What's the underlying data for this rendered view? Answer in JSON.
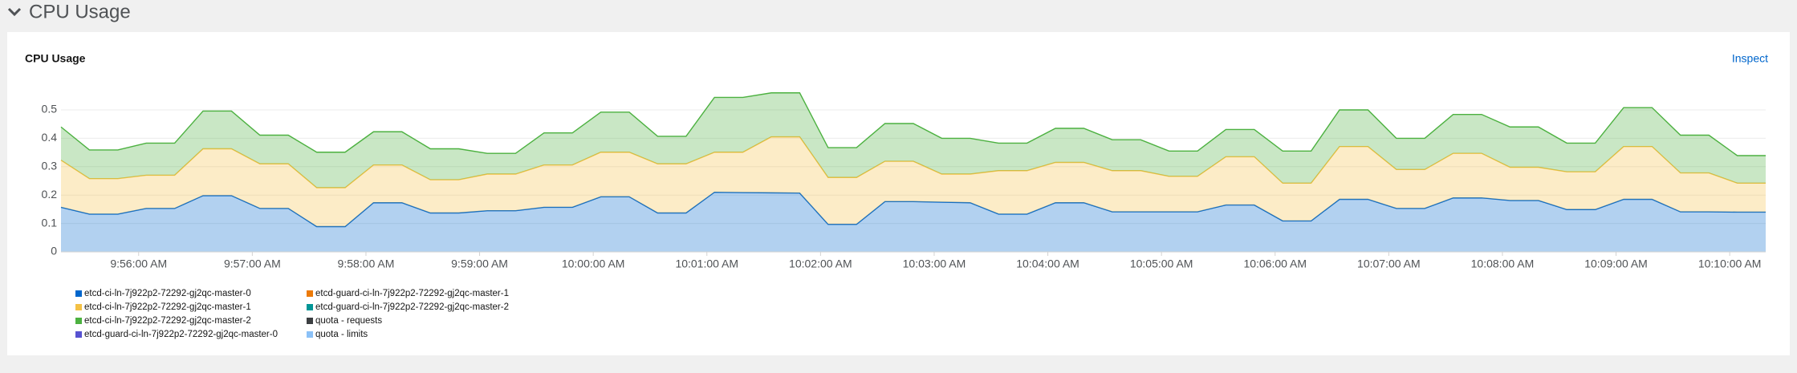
{
  "section": {
    "title": "CPU Usage"
  },
  "card": {
    "action": "Inspect"
  },
  "chart_data": {
    "type": "stacked-area",
    "title": "CPU Usage",
    "x": [
      "9:55:19 AM",
      "9:55:34 AM",
      "9:55:49 AM",
      "9:56:04 AM",
      "9:56:19 AM",
      "9:56:34 AM",
      "9:56:49 AM",
      "9:57:04 AM",
      "9:57:19 AM",
      "9:57:34 AM",
      "9:57:49 AM",
      "9:58:04 AM",
      "9:58:19 AM",
      "9:58:34 AM",
      "9:58:49 AM",
      "9:59:04 AM",
      "9:59:19 AM",
      "9:59:34 AM",
      "9:59:49 AM",
      "10:00:04 AM",
      "10:00:19 AM",
      "10:00:34 AM",
      "10:00:49 AM",
      "10:01:04 AM",
      "10:01:19 AM",
      "10:01:34 AM",
      "10:01:49 AM",
      "10:02:04 AM",
      "10:02:19 AM",
      "10:02:34 AM",
      "10:02:49 AM",
      "10:03:04 AM",
      "10:03:19 AM",
      "10:03:34 AM",
      "10:03:49 AM",
      "10:04:04 AM",
      "10:04:19 AM",
      "10:04:34 AM",
      "10:04:49 AM",
      "10:05:04 AM",
      "10:05:19 AM",
      "10:05:34 AM",
      "10:05:49 AM",
      "10:06:04 AM",
      "10:06:19 AM",
      "10:06:34 AM",
      "10:06:49 AM",
      "10:07:04 AM",
      "10:07:19 AM",
      "10:07:34 AM",
      "10:07:49 AM",
      "10:08:04 AM",
      "10:08:19 AM",
      "10:08:34 AM",
      "10:08:49 AM",
      "10:09:04 AM",
      "10:09:19 AM",
      "10:09:34 AM",
      "10:09:49 AM",
      "10:10:04 AM",
      "10:10:19 AM"
    ],
    "xlim": [
      "9:55:19 AM",
      "10:10:19 AM"
    ],
    "xticks": [
      "9:56:00 AM",
      "9:57:00 AM",
      "9:58:00 AM",
      "9:59:00 AM",
      "10:00:00 AM",
      "10:01:00 AM",
      "10:02:00 AM",
      "10:03:00 AM",
      "10:04:00 AM",
      "10:05:00 AM",
      "10:06:00 AM",
      "10:07:00 AM",
      "10:08:00 AM",
      "10:09:00 AM",
      "10:10:00 AM"
    ],
    "ylim": [
      0,
      0.5
    ],
    "yticks": [
      0,
      0.1,
      0.2,
      0.3,
      0.4,
      0.5
    ],
    "grid": true,
    "series": [
      {
        "name": "etcd-ci-ln-7j922p2-72292-gj2qc-master-0",
        "color": "#0066cc",
        "values": [
          0.157,
          0.133,
          0.133,
          0.153,
          0.153,
          0.198,
          0.198,
          0.153,
          0.153,
          0.089,
          0.089,
          0.173,
          0.173,
          0.137,
          0.137,
          0.145,
          0.145,
          0.157,
          0.157,
          0.194,
          0.194,
          0.137,
          0.137,
          0.21,
          0.209,
          0.208,
          0.207,
          0.097,
          0.097,
          0.177,
          0.177,
          0.175,
          0.173,
          0.133,
          0.133,
          0.173,
          0.173,
          0.141,
          0.141,
          0.141,
          0.141,
          0.165,
          0.165,
          0.109,
          0.109,
          0.185,
          0.185,
          0.153,
          0.153,
          0.19,
          0.19,
          0.181,
          0.181,
          0.149,
          0.149,
          0.185,
          0.185,
          0.141,
          0.141,
          0.14,
          0.14
        ]
      },
      {
        "name": "etcd-ci-ln-7j922p2-72292-gj2qc-master-1",
        "color": "#f4c145",
        "values": [
          0.166,
          0.125,
          0.125,
          0.117,
          0.117,
          0.165,
          0.165,
          0.157,
          0.157,
          0.137,
          0.137,
          0.133,
          0.133,
          0.117,
          0.117,
          0.129,
          0.129,
          0.149,
          0.149,
          0.157,
          0.157,
          0.173,
          0.173,
          0.141,
          0.142,
          0.197,
          0.198,
          0.165,
          0.165,
          0.142,
          0.142,
          0.099,
          0.101,
          0.153,
          0.153,
          0.142,
          0.142,
          0.145,
          0.145,
          0.125,
          0.125,
          0.17,
          0.17,
          0.133,
          0.133,
          0.186,
          0.186,
          0.137,
          0.137,
          0.157,
          0.157,
          0.117,
          0.117,
          0.133,
          0.133,
          0.186,
          0.186,
          0.137,
          0.137,
          0.102,
          0.102
        ]
      },
      {
        "name": "etcd-ci-ln-7j922p2-72292-gj2qc-master-2",
        "color": "#4cb140",
        "values": [
          0.117,
          0.101,
          0.101,
          0.113,
          0.113,
          0.133,
          0.133,
          0.101,
          0.101,
          0.125,
          0.125,
          0.117,
          0.117,
          0.109,
          0.109,
          0.073,
          0.073,
          0.113,
          0.113,
          0.141,
          0.141,
          0.097,
          0.097,
          0.193,
          0.193,
          0.155,
          0.155,
          0.105,
          0.105,
          0.133,
          0.133,
          0.126,
          0.126,
          0.097,
          0.097,
          0.12,
          0.12,
          0.109,
          0.109,
          0.089,
          0.089,
          0.096,
          0.096,
          0.113,
          0.113,
          0.129,
          0.129,
          0.11,
          0.11,
          0.137,
          0.137,
          0.142,
          0.142,
          0.101,
          0.101,
          0.137,
          0.137,
          0.133,
          0.133,
          0.097,
          0.097
        ]
      },
      {
        "name": "etcd-guard-ci-ln-7j922p2-72292-gj2qc-master-0",
        "color": "#5752d1"
      },
      {
        "name": "etcd-guard-ci-ln-7j922p2-72292-gj2qc-master-1",
        "color": "#ec7a08"
      },
      {
        "name": "etcd-guard-ci-ln-7j922p2-72292-gj2qc-master-2",
        "color": "#009596"
      },
      {
        "name": "quota - requests",
        "color": "#3c3f42"
      },
      {
        "name": "quota - limits",
        "color": "#8bc1f7"
      }
    ]
  }
}
